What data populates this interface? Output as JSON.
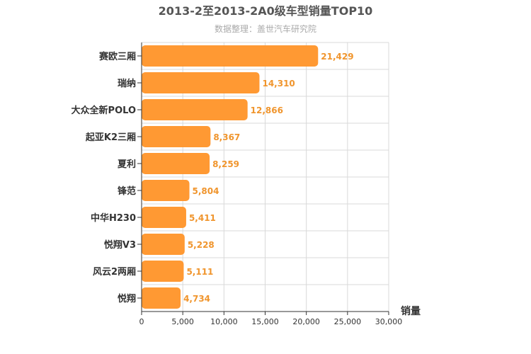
{
  "chart_data": {
    "type": "bar",
    "orientation": "horizontal",
    "title": "2013-2至2013-2A0级车型销量TOP10",
    "subtitle": "数据整理：盖世汽车研究院",
    "xlabel": "销量",
    "ylabel": "",
    "xlim": [
      0,
      30000
    ],
    "xticks": [
      0,
      5000,
      10000,
      15000,
      20000,
      25000,
      30000
    ],
    "xtick_labels": [
      "0",
      "5,000",
      "10,000",
      "15,000",
      "20,000",
      "25,000",
      "30,000"
    ],
    "grid": true,
    "legend": "none",
    "categories": [
      "赛欧三厢",
      "瑞纳",
      "大众全新POLO",
      "起亚K2三厢",
      "夏利",
      "锋范",
      "中华H230",
      "悦翔V3",
      "风云2两厢",
      "悦翔"
    ],
    "values": [
      21429,
      14310,
      12866,
      8367,
      8259,
      5804,
      5411,
      5228,
      5111,
      4734
    ],
    "value_labels": [
      "21,429",
      "14,310",
      "12,866",
      "8,367",
      "8,259",
      "5,804",
      "5,411",
      "5,228",
      "5,111",
      "4,734"
    ],
    "colors": {
      "bar": "#ff9933",
      "value_label": "#f0952d",
      "grid": "#d9d9d9",
      "axis": "#333333",
      "title": "#555555",
      "subtitle": "#aaaaaa"
    }
  }
}
